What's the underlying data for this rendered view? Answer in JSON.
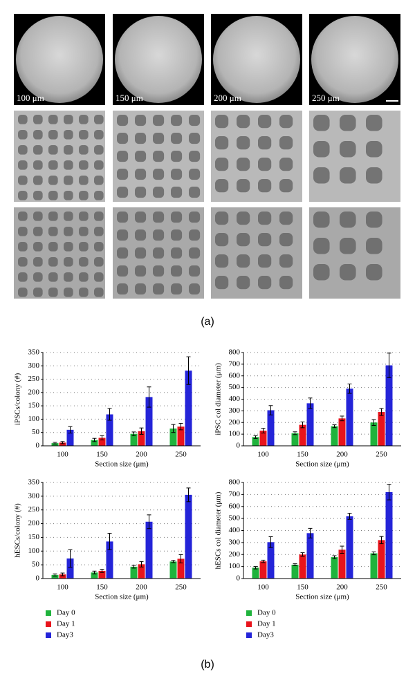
{
  "micrograph_labels": [
    "100 μm",
    "150 μm",
    "200 μm",
    "250 μm"
  ],
  "panel_labels": [
    "(a)",
    "(b)"
  ],
  "chart_data": [
    {
      "type": "bar",
      "y_label": "iPSCs/colony (#)",
      "x_label": "Section size (μm)",
      "categories": [
        "100",
        "150",
        "200",
        "250"
      ],
      "ylim": [
        0,
        350
      ],
      "yticks": [
        0,
        50,
        100,
        150,
        200,
        250,
        300,
        350
      ],
      "grid": true,
      "legend": "bottom",
      "series": [
        {
          "name": "Day 0",
          "color": "#1fb33c",
          "values": [
            10,
            22,
            45,
            65
          ],
          "errors": [
            3,
            6,
            7,
            15
          ]
        },
        {
          "name": "Day 1",
          "color": "#e8141c",
          "values": [
            12,
            30,
            55,
            72
          ],
          "errors": [
            4,
            8,
            12,
            12
          ]
        },
        {
          "name": "Day3",
          "color": "#2424d8",
          "values": [
            60,
            118,
            183,
            282
          ],
          "errors": [
            12,
            22,
            38,
            52
          ]
        }
      ]
    },
    {
      "type": "bar",
      "y_label": "iPSC col diameter (μm)",
      "x_label": "Section size (μm)",
      "categories": [
        "100",
        "150",
        "200",
        "250"
      ],
      "ylim": [
        0,
        800
      ],
      "yticks": [
        0,
        100,
        200,
        300,
        400,
        500,
        600,
        700,
        800
      ],
      "grid": true,
      "legend": "bottom",
      "series": [
        {
          "name": "Day 0",
          "color": "#1fb33c",
          "values": [
            75,
            108,
            168,
            200
          ],
          "errors": [
            12,
            12,
            12,
            25
          ]
        },
        {
          "name": "Day 1",
          "color": "#e8141c",
          "values": [
            130,
            180,
            235,
            290
          ],
          "errors": [
            20,
            25,
            20,
            30
          ]
        },
        {
          "name": "Day3",
          "color": "#2424d8",
          "values": [
            305,
            365,
            490,
            690
          ],
          "errors": [
            40,
            45,
            40,
            105
          ]
        }
      ]
    },
    {
      "type": "bar",
      "y_label": "hESCs/colony (#)",
      "x_label": "Section size (μm)",
      "categories": [
        "100",
        "150",
        "200",
        "250"
      ],
      "ylim": [
        0,
        350
      ],
      "yticks": [
        0,
        50,
        100,
        150,
        200,
        250,
        300,
        350
      ],
      "grid": true,
      "legend": "bottom",
      "series": [
        {
          "name": "Day 0",
          "color": "#1fb33c",
          "values": [
            13,
            22,
            43,
            62
          ],
          "errors": [
            4,
            5,
            5,
            4
          ]
        },
        {
          "name": "Day 1",
          "color": "#e8141c",
          "values": [
            15,
            28,
            52,
            72
          ],
          "errors": [
            5,
            6,
            10,
            15
          ]
        },
        {
          "name": "Day3",
          "color": "#2424d8",
          "values": [
            73,
            135,
            207,
            305
          ],
          "errors": [
            32,
            30,
            25,
            25
          ]
        }
      ]
    },
    {
      "type": "bar",
      "y_label": "hESCs col diameter (μm)",
      "x_label": "Section size (μm)",
      "categories": [
        "100",
        "150",
        "200",
        "250"
      ],
      "ylim": [
        0,
        800
      ],
      "yticks": [
        0,
        100,
        200,
        300,
        400,
        500,
        600,
        700,
        800
      ],
      "grid": true,
      "legend": "bottom",
      "series": [
        {
          "name": "Day 0",
          "color": "#1fb33c",
          "values": [
            90,
            115,
            178,
            210
          ],
          "errors": [
            10,
            8,
            12,
            12
          ]
        },
        {
          "name": "Day 1",
          "color": "#e8141c",
          "values": [
            143,
            200,
            240,
            320
          ],
          "errors": [
            10,
            15,
            30,
            30
          ]
        },
        {
          "name": "Day3",
          "color": "#2424d8",
          "values": [
            303,
            378,
            518,
            720
          ],
          "errors": [
            45,
            40,
            25,
            65
          ]
        }
      ]
    }
  ]
}
